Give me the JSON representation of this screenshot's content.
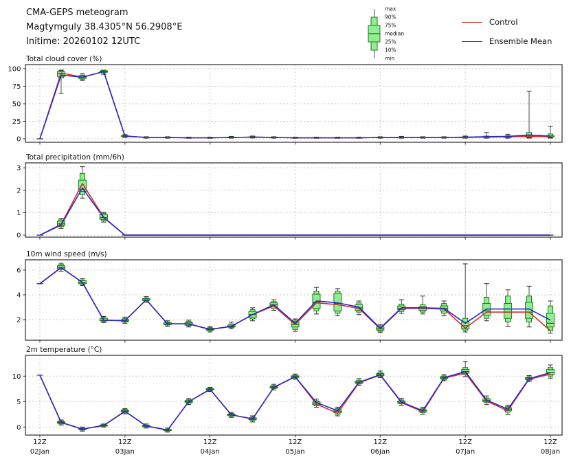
{
  "header": {
    "title": "CMA-GEPS meteogram",
    "location": "Magtymguly 38.4305°N 56.2908°E",
    "inittime": "Initime: 20260102 12UTC"
  },
  "legend": {
    "box_labels": [
      "max",
      "90%",
      "75%",
      "median",
      "25%",
      "10%",
      "min"
    ],
    "control_label": "Control",
    "ensemble_label": "Ensemble Mean"
  },
  "colors": {
    "control": "#d22f2f",
    "ensemble": "#2828c8",
    "box_fill": "#90ee90",
    "box_edge": "#1e781e",
    "median": "#1d6e10",
    "whisker": "#4a4a4a",
    "cap": "#222222",
    "grid": "#c9c9c9",
    "spine": "#3a3a3a",
    "text": "#111111"
  },
  "x_axis": {
    "start": "02Jan2026 12UTC",
    "step_hours": 6,
    "n_points": 25,
    "tick_indices": [
      0,
      4,
      8,
      12,
      16,
      20,
      24
    ],
    "tick_labels": [
      {
        "time": "12Z",
        "date": "02Jan"
      },
      {
        "time": "12Z",
        "date": "03Jan"
      },
      {
        "time": "12Z",
        "date": "04Jan"
      },
      {
        "time": "12Z",
        "date": "05Jan"
      },
      {
        "time": "12Z",
        "date": "06Jan"
      },
      {
        "time": "12Z",
        "date": "07Jan"
      },
      {
        "time": "12Z",
        "date": "08Jan"
      }
    ]
  },
  "chart_data": [
    {
      "type": "line+boxplot",
      "title": "Total cloud cover (%)",
      "yticks": [
        0,
        25,
        50,
        75,
        100
      ],
      "ylim": [
        -4.9,
        105.9
      ],
      "series": [
        {
          "name": "Control",
          "color_key": "control",
          "values": [
            0,
            94,
            88,
            96,
            4,
            2,
            2,
            1.5,
            1.5,
            2,
            2.5,
            2,
            1.5,
            1.5,
            1.5,
            1.5,
            2,
            2,
            2,
            2,
            2,
            2.5,
            3,
            3.5,
            3
          ]
        },
        {
          "name": "Ensemble Mean",
          "color_key": "ensemble",
          "values": [
            0,
            91,
            88,
            96,
            4,
            2,
            2,
            1.5,
            1.5,
            2,
            2.5,
            2,
            1.5,
            1.5,
            1.5,
            1.5,
            2,
            2,
            2,
            2,
            2.5,
            3,
            3.5,
            5.5,
            4
          ]
        }
      ],
      "boxes_order": [
        "min",
        "p10",
        "p25",
        "median",
        "p75",
        "p90",
        "max"
      ],
      "boxes": [
        [
          0,
          0,
          0,
          0,
          0,
          0,
          0
        ],
        [
          65,
          87,
          89,
          93,
          96,
          97,
          98
        ],
        [
          83,
          85,
          86,
          88,
          90,
          91,
          93
        ],
        [
          92,
          94,
          95,
          96,
          97,
          98,
          98
        ],
        [
          2,
          3,
          3.5,
          4,
          4.5,
          5,
          6
        ],
        [
          1,
          1.5,
          1.8,
          2,
          2.3,
          2.6,
          3
        ],
        [
          1,
          1.5,
          1.8,
          2,
          2.3,
          2.6,
          3
        ],
        [
          0.8,
          1,
          1.2,
          1.5,
          1.8,
          2,
          2.5
        ],
        [
          0.8,
          1,
          1.2,
          1.5,
          1.8,
          2,
          2.5
        ],
        [
          1,
          1.5,
          1.8,
          2,
          2.3,
          2.8,
          3.5
        ],
        [
          1.2,
          1.8,
          2,
          2.5,
          2.8,
          3.2,
          4
        ],
        [
          1,
          1.5,
          1.8,
          2,
          2.3,
          2.6,
          3
        ],
        [
          0.8,
          1,
          1.2,
          1.5,
          1.8,
          2,
          2.5
        ],
        [
          0.8,
          1,
          1.2,
          1.5,
          1.8,
          2,
          2.5
        ],
        [
          0.8,
          1,
          1.2,
          1.5,
          1.8,
          2,
          2.5
        ],
        [
          0.8,
          1,
          1.2,
          1.5,
          1.8,
          2,
          2.5
        ],
        [
          1,
          1.5,
          1.8,
          2,
          2.3,
          2.6,
          3
        ],
        [
          1,
          1.5,
          1.8,
          2,
          2.3,
          2.6,
          3.5
        ],
        [
          1,
          1.5,
          1.8,
          2,
          2.3,
          2.6,
          3
        ],
        [
          1,
          1.5,
          1.8,
          2,
          2.3,
          2.6,
          3
        ],
        [
          1,
          1.5,
          1.8,
          2,
          2.5,
          3,
          4
        ],
        [
          1,
          1.5,
          2,
          2.5,
          3,
          4,
          9
        ],
        [
          1,
          1.8,
          2.2,
          3,
          3.5,
          4.5,
          6.5
        ],
        [
          1,
          2,
          2.5,
          3.5,
          5,
          9,
          68
        ],
        [
          1,
          2,
          2.5,
          3,
          4.5,
          7,
          18
        ]
      ]
    },
    {
      "type": "line+boxplot",
      "title": "Total precipitation (mm/6h)",
      "yticks": [
        0,
        1,
        2,
        3
      ],
      "ylim": [
        -0.09,
        3.22
      ],
      "series": [
        {
          "name": "Control",
          "color_key": "control",
          "values": [
            0,
            0.48,
            2.3,
            0.8,
            0,
            0,
            0,
            0,
            0,
            0,
            0,
            0,
            0,
            0,
            0,
            0,
            0,
            0,
            0,
            0,
            0,
            0,
            0,
            0,
            0
          ]
        },
        {
          "name": "Ensemble Mean",
          "color_key": "ensemble",
          "values": [
            0,
            0.45,
            2.1,
            0.78,
            0,
            0,
            0,
            0,
            0,
            0,
            0,
            0,
            0,
            0,
            0,
            0,
            0,
            0,
            0,
            0,
            0,
            0,
            0,
            0,
            0
          ]
        }
      ],
      "boxes_order": [
        "min",
        "p10",
        "p25",
        "median",
        "p75",
        "p90",
        "max"
      ],
      "boxes": [
        [
          0,
          0,
          0,
          0,
          0,
          0,
          0
        ],
        [
          0.3,
          0.38,
          0.42,
          0.5,
          0.62,
          0.68,
          0.75
        ],
        [
          1.65,
          1.8,
          1.95,
          2.05,
          2.45,
          2.75,
          3.05
        ],
        [
          0.58,
          0.65,
          0.7,
          0.78,
          0.92,
          0.97,
          1.02
        ],
        [
          0,
          0,
          0,
          0,
          0,
          0,
          0
        ],
        [
          0,
          0,
          0,
          0,
          0,
          0,
          0
        ],
        [
          0,
          0,
          0,
          0,
          0,
          0,
          0
        ],
        [
          0,
          0,
          0,
          0,
          0,
          0,
          0
        ],
        [
          0,
          0,
          0,
          0,
          0,
          0,
          0
        ],
        [
          0,
          0,
          0,
          0,
          0,
          0,
          0
        ],
        [
          0,
          0,
          0,
          0,
          0,
          0,
          0
        ],
        [
          0,
          0,
          0,
          0,
          0,
          0,
          0
        ],
        [
          0,
          0,
          0,
          0,
          0,
          0,
          0
        ],
        [
          0,
          0,
          0,
          0,
          0,
          0,
          0
        ],
        [
          0,
          0,
          0,
          0,
          0,
          0,
          0
        ],
        [
          0,
          0,
          0,
          0,
          0,
          0,
          0
        ],
        [
          0,
          0,
          0,
          0,
          0,
          0,
          0
        ],
        [
          0,
          0,
          0,
          0,
          0,
          0,
          0
        ],
        [
          0,
          0,
          0,
          0,
          0,
          0,
          0
        ],
        [
          0,
          0,
          0,
          0,
          0,
          0,
          0
        ],
        [
          0,
          0,
          0,
          0,
          0,
          0,
          0
        ],
        [
          0,
          0,
          0,
          0,
          0,
          0,
          0
        ],
        [
          0,
          0,
          0,
          0,
          0,
          0,
          0
        ],
        [
          0,
          0,
          0,
          0,
          0,
          0,
          0
        ],
        [
          0,
          0,
          0,
          0,
          0,
          0,
          0
        ]
      ]
    },
    {
      "type": "line+boxplot",
      "title": "10m wind speed (m/s)",
      "yticks": [
        2,
        4,
        6
      ],
      "ylim": [
        0.33,
        6.83
      ],
      "series": [
        {
          "name": "Control",
          "color_key": "control",
          "values": [
            4.9,
            6.2,
            5.0,
            1.95,
            1.9,
            3.6,
            1.65,
            1.65,
            1.2,
            1.45,
            2.4,
            3.1,
            1.6,
            3.35,
            3.2,
            2.9,
            1.25,
            2.9,
            2.9,
            2.85,
            1.3,
            2.6,
            2.6,
            2.6,
            1.1
          ]
        },
        {
          "name": "Ensemble Mean",
          "color_key": "ensemble",
          "values": [
            4.9,
            6.2,
            5.0,
            1.95,
            1.9,
            3.6,
            1.65,
            1.65,
            1.2,
            1.45,
            2.4,
            3.2,
            1.7,
            3.5,
            3.35,
            3.0,
            1.3,
            2.95,
            2.95,
            2.9,
            1.7,
            2.85,
            2.85,
            2.85,
            1.95
          ]
        }
      ],
      "boxes_order": [
        "min",
        "p10",
        "p25",
        "median",
        "p75",
        "p90",
        "max"
      ],
      "boxes": [
        [
          4.9,
          4.9,
          4.9,
          4.9,
          4.9,
          4.9,
          4.9
        ],
        [
          5.9,
          6.05,
          6.1,
          6.2,
          6.35,
          6.45,
          6.55
        ],
        [
          4.75,
          4.85,
          4.9,
          5.0,
          5.15,
          5.2,
          5.3
        ],
        [
          1.75,
          1.85,
          1.9,
          1.95,
          2.1,
          2.15,
          2.25
        ],
        [
          1.7,
          1.8,
          1.85,
          1.9,
          2.0,
          2.1,
          2.2
        ],
        [
          3.4,
          3.5,
          3.55,
          3.6,
          3.7,
          3.75,
          3.85
        ],
        [
          1.45,
          1.55,
          1.6,
          1.65,
          1.75,
          1.8,
          1.9
        ],
        [
          1.4,
          1.5,
          1.55,
          1.65,
          1.75,
          1.85,
          1.95
        ],
        [
          1.0,
          1.1,
          1.15,
          1.2,
          1.3,
          1.35,
          1.45
        ],
        [
          1.25,
          1.35,
          1.4,
          1.45,
          1.55,
          1.65,
          1.8
        ],
        [
          1.9,
          2.05,
          2.15,
          2.4,
          2.65,
          2.8,
          2.95
        ],
        [
          2.75,
          2.9,
          3.05,
          3.2,
          3.35,
          3.45,
          3.6
        ],
        [
          1.05,
          1.2,
          1.4,
          1.6,
          1.85,
          1.95,
          2.05
        ],
        [
          2.45,
          2.7,
          2.9,
          3.4,
          4.05,
          4.3,
          4.6
        ],
        [
          2.3,
          2.5,
          2.7,
          3.3,
          4.1,
          4.3,
          4.5
        ],
        [
          2.4,
          2.6,
          2.75,
          2.95,
          3.2,
          3.35,
          3.5
        ],
        [
          0.95,
          1.05,
          1.15,
          1.25,
          1.4,
          1.5,
          1.6
        ],
        [
          2.5,
          2.65,
          2.8,
          2.9,
          3.1,
          3.25,
          3.6
        ],
        [
          2.45,
          2.6,
          2.75,
          2.9,
          3.05,
          3.2,
          3.9
        ],
        [
          2.3,
          2.5,
          2.7,
          2.9,
          3.1,
          3.3,
          3.5
        ],
        [
          1.0,
          1.15,
          1.25,
          1.5,
          1.8,
          2.1,
          6.5
        ],
        [
          1.9,
          2.1,
          2.35,
          2.7,
          3.3,
          3.8,
          4.9
        ],
        [
          1.45,
          1.8,
          2.1,
          2.6,
          3.3,
          3.9,
          4.4
        ],
        [
          1.4,
          1.8,
          2.1,
          2.6,
          3.4,
          3.9,
          4.7
        ],
        [
          0.9,
          1.1,
          1.4,
          1.7,
          2.5,
          3.1,
          3.5
        ]
      ]
    },
    {
      "type": "line+boxplot",
      "title": "2m temperature (°C)",
      "yticks": [
        0,
        5,
        10
      ],
      "ylim": [
        -1.58,
        14.09
      ],
      "series": [
        {
          "name": "Control",
          "color_key": "control",
          "values": [
            10.2,
            0.9,
            -0.4,
            0.3,
            3.1,
            0.2,
            -0.6,
            5.0,
            7.4,
            2.4,
            1.6,
            7.8,
            9.9,
            4.5,
            2.7,
            8.7,
            10.2,
            4.8,
            3.0,
            9.6,
            10.6,
            5.1,
            3.2,
            9.4,
            10.4
          ]
        },
        {
          "name": "Ensemble Mean",
          "color_key": "ensemble",
          "values": [
            10.2,
            0.9,
            -0.4,
            0.3,
            3.1,
            0.2,
            -0.6,
            5.0,
            7.4,
            2.4,
            1.6,
            7.8,
            9.9,
            4.8,
            3.2,
            8.8,
            10.3,
            4.9,
            3.2,
            9.7,
            10.9,
            5.3,
            3.5,
            9.5,
            10.7
          ]
        }
      ],
      "boxes_order": [
        "min",
        "p10",
        "p25",
        "median",
        "p75",
        "p90",
        "max"
      ],
      "boxes": [
        [
          10.2,
          10.2,
          10.2,
          10.2,
          10.2,
          10.2,
          10.2
        ],
        [
          0.4,
          0.6,
          0.75,
          0.9,
          1.05,
          1.2,
          1.4
        ],
        [
          -0.8,
          -0.6,
          -0.5,
          -0.4,
          -0.3,
          -0.2,
          0.0
        ],
        [
          0.0,
          0.15,
          0.2,
          0.3,
          0.4,
          0.5,
          0.6
        ],
        [
          2.6,
          2.85,
          3.0,
          3.15,
          3.3,
          3.45,
          3.6
        ],
        [
          -0.2,
          0.0,
          0.1,
          0.2,
          0.3,
          0.4,
          0.6
        ],
        [
          -1.0,
          -0.8,
          -0.7,
          -0.6,
          -0.5,
          -0.4,
          -0.2
        ],
        [
          4.4,
          4.7,
          4.85,
          5.0,
          5.2,
          5.35,
          5.6
        ],
        [
          7.0,
          7.2,
          7.3,
          7.4,
          7.55,
          7.65,
          7.8
        ],
        [
          1.9,
          2.1,
          2.25,
          2.4,
          2.55,
          2.7,
          2.9
        ],
        [
          1.0,
          1.3,
          1.45,
          1.6,
          1.8,
          1.95,
          2.2
        ],
        [
          7.3,
          7.55,
          7.7,
          7.85,
          8.0,
          8.15,
          8.4
        ],
        [
          9.4,
          9.6,
          9.75,
          9.9,
          10.05,
          10.2,
          10.4
        ],
        [
          3.9,
          4.2,
          4.4,
          4.7,
          4.95,
          5.15,
          5.5
        ],
        [
          2.2,
          2.5,
          2.8,
          3.1,
          3.4,
          3.6,
          3.9
        ],
        [
          8.2,
          8.45,
          8.6,
          8.8,
          9.0,
          9.2,
          9.5
        ],
        [
          9.7,
          9.9,
          10.1,
          10.3,
          10.5,
          10.7,
          11.0
        ],
        [
          4.3,
          4.55,
          4.7,
          4.9,
          5.1,
          5.3,
          5.6
        ],
        [
          2.5,
          2.8,
          3.0,
          3.2,
          3.4,
          3.6,
          3.9
        ],
        [
          9.1,
          9.35,
          9.5,
          9.7,
          9.9,
          10.05,
          10.3
        ],
        [
          9.9,
          10.3,
          10.6,
          10.9,
          11.3,
          11.7,
          12.9
        ],
        [
          4.4,
          4.8,
          5.0,
          5.2,
          5.5,
          5.7,
          6.1
        ],
        [
          2.4,
          2.9,
          3.2,
          3.5,
          3.8,
          4.0,
          4.3
        ],
        [
          8.9,
          9.2,
          9.35,
          9.5,
          9.7,
          9.85,
          10.1
        ],
        [
          9.6,
          10.0,
          10.3,
          10.7,
          11.3,
          11.7,
          12.2
        ]
      ]
    }
  ]
}
